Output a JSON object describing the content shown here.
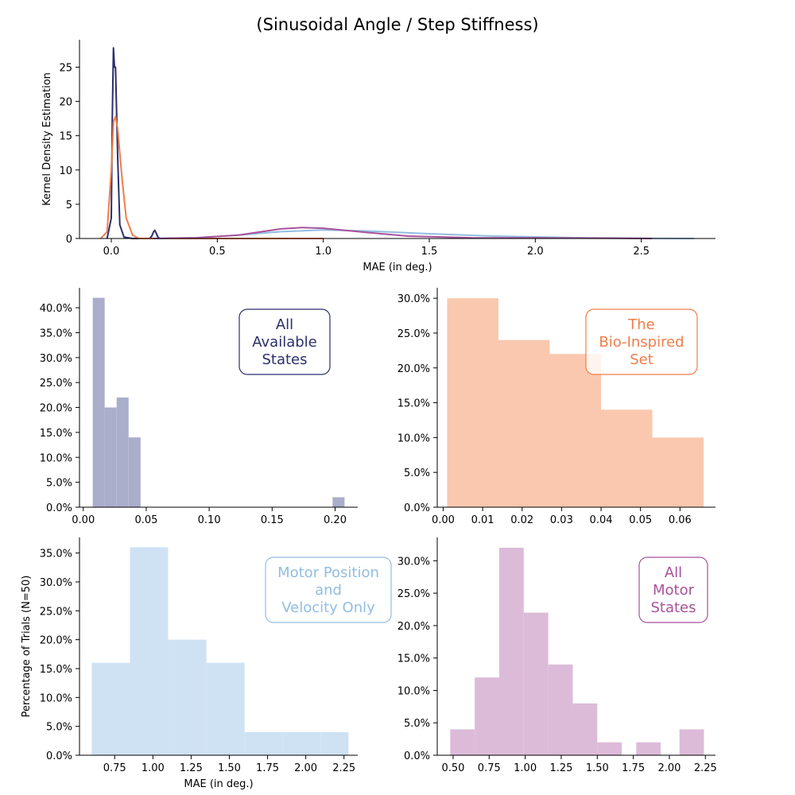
{
  "title": "(Sinusoidal Angle / Step Stiffness)",
  "ylabel_left": "Percentage of Trials (N=50)",
  "chart_data": [
    {
      "type": "line",
      "name": "kde",
      "xlabel": "MAE (in deg.)",
      "ylabel": "Kernel Density Estimation",
      "xlim": [
        -0.15,
        2.85
      ],
      "ylim": [
        0,
        29
      ],
      "xticks": [
        0.0,
        0.5,
        1.0,
        1.5,
        2.0,
        2.5
      ],
      "yticks": [
        0,
        5,
        10,
        15,
        20,
        25
      ],
      "series": [
        {
          "color": "#2b2f6b",
          "x": [
            -0.02,
            0.0,
            0.005,
            0.01,
            0.015,
            0.02,
            0.03,
            0.04,
            0.06,
            0.1,
            0.18,
            0.19,
            0.2,
            0.205,
            0.21,
            0.22,
            0.23,
            0.3,
            1.0
          ],
          "y": [
            0,
            3,
            18,
            27.8,
            25,
            25,
            12,
            2,
            0.2,
            0,
            0,
            0.3,
            1.0,
            1.2,
            0.9,
            0.2,
            0,
            0,
            0
          ]
        },
        {
          "color": "#f07d4a",
          "x": [
            -0.05,
            -0.02,
            0.0,
            0.01,
            0.02,
            0.03,
            0.05,
            0.07,
            0.1,
            0.13,
            0.2,
            1.0
          ],
          "y": [
            0,
            1,
            10,
            17,
            17.8,
            16,
            9,
            3,
            0.5,
            0,
            0,
            0
          ]
        },
        {
          "color": "#92bde1",
          "x": [
            0.2,
            0.4,
            0.6,
            0.8,
            1.0,
            1.2,
            1.5,
            1.8,
            2.2,
            2.5,
            2.75
          ],
          "y": [
            0,
            0.1,
            0.5,
            1.0,
            1.25,
            1.1,
            0.7,
            0.35,
            0.12,
            0.03,
            0
          ]
        },
        {
          "color": "#a8529b",
          "x": [
            0.2,
            0.4,
            0.6,
            0.8,
            0.9,
            1.0,
            1.2,
            1.4,
            1.7,
            2.0,
            2.3,
            2.55
          ],
          "y": [
            0,
            0.1,
            0.5,
            1.4,
            1.6,
            1.5,
            0.9,
            0.35,
            0.1,
            0.08,
            0.05,
            0
          ]
        }
      ]
    },
    {
      "type": "bar",
      "name": "all-available-states",
      "label": "All\nAvailable\nStates",
      "color": "#aaaecb",
      "boxcolor": "#2b2f6b",
      "xlim": [
        -0.003,
        0.218
      ],
      "ylim": [
        0,
        0.44
      ],
      "xticks": [
        0.0,
        0.05,
        0.1,
        0.15,
        0.2
      ],
      "xticklabels": [
        "0.00",
        "0.05",
        "0.10",
        "0.15",
        "0.20"
      ],
      "yticks": [
        0,
        0.05,
        0.1,
        0.15,
        0.2,
        0.25,
        0.3,
        0.35,
        0.4
      ],
      "bins": [
        {
          "x0": 0.0075,
          "x1": 0.017,
          "v": 0.42
        },
        {
          "x0": 0.017,
          "x1": 0.0265,
          "v": 0.2
        },
        {
          "x0": 0.0265,
          "x1": 0.036,
          "v": 0.22
        },
        {
          "x0": 0.036,
          "x1": 0.0455,
          "v": 0.14
        },
        {
          "x0": 0.198,
          "x1": 0.2075,
          "v": 0.02
        }
      ]
    },
    {
      "type": "bar",
      "name": "bio-inspired-set",
      "label": "The\nBio-Inspired\nSet",
      "color": "#f9c8ae",
      "boxcolor": "#f07d4a",
      "xlim": [
        -0.0015,
        0.069
      ],
      "ylim": [
        0,
        0.315
      ],
      "xticks": [
        0.0,
        0.01,
        0.02,
        0.03,
        0.04,
        0.05,
        0.06
      ],
      "xticklabels": [
        "0.00",
        "0.01",
        "0.02",
        "0.03",
        "0.04",
        "0.05",
        "0.06"
      ],
      "yticks": [
        0,
        0.05,
        0.1,
        0.15,
        0.2,
        0.25,
        0.3
      ],
      "bins": [
        {
          "x0": 0.001,
          "x1": 0.014,
          "v": 0.3
        },
        {
          "x0": 0.014,
          "x1": 0.027,
          "v": 0.24
        },
        {
          "x0": 0.027,
          "x1": 0.04,
          "v": 0.22
        },
        {
          "x0": 0.04,
          "x1": 0.053,
          "v": 0.14
        },
        {
          "x0": 0.053,
          "x1": 0.066,
          "v": 0.1
        }
      ]
    },
    {
      "type": "bar",
      "name": "motor-position-velocity",
      "label": "Motor Position\nand\nVelocity Only",
      "color": "#cfe2f4",
      "boxcolor": "#92bde1",
      "xlabel": "MAE (in deg.)",
      "xlim": [
        0.52,
        2.34
      ],
      "ylim": [
        0,
        0.377
      ],
      "xticks": [
        0.75,
        1.0,
        1.25,
        1.5,
        1.75,
        2.0,
        2.25
      ],
      "xticklabels": [
        "0.75",
        "1.00",
        "1.25",
        "1.50",
        "1.75",
        "2.00",
        "2.25"
      ],
      "yticks": [
        0,
        0.05,
        0.1,
        0.15,
        0.2,
        0.25,
        0.3,
        0.35
      ],
      "bins": [
        {
          "x0": 0.6,
          "x1": 0.85,
          "v": 0.16
        },
        {
          "x0": 0.85,
          "x1": 1.1,
          "v": 0.36
        },
        {
          "x0": 1.1,
          "x1": 1.35,
          "v": 0.2
        },
        {
          "x0": 1.35,
          "x1": 1.6,
          "v": 0.16
        },
        {
          "x0": 1.6,
          "x1": 1.85,
          "v": 0.04
        },
        {
          "x0": 1.85,
          "x1": 2.1,
          "v": 0.04
        },
        {
          "x0": 2.1,
          "x1": 2.28,
          "v": 0.04
        }
      ]
    },
    {
      "type": "bar",
      "name": "all-motor-states",
      "label": "All\nMotor\nStates",
      "color": "#dcbbd9",
      "boxcolor": "#a8529b",
      "xlim": [
        0.39,
        2.32
      ],
      "ylim": [
        0,
        0.336
      ],
      "xticks": [
        0.5,
        0.75,
        1.0,
        1.25,
        1.5,
        1.75,
        2.0,
        2.25
      ],
      "xticklabels": [
        "0.50",
        "0.75",
        "1.00",
        "1.25",
        "1.50",
        "1.75",
        "2.00",
        "2.25"
      ],
      "yticks": [
        0,
        0.05,
        0.1,
        0.15,
        0.2,
        0.25,
        0.3
      ],
      "bins": [
        {
          "x0": 0.48,
          "x1": 0.65,
          "v": 0.04
        },
        {
          "x0": 0.65,
          "x1": 0.82,
          "v": 0.12
        },
        {
          "x0": 0.82,
          "x1": 0.99,
          "v": 0.32
        },
        {
          "x0": 0.99,
          "x1": 1.16,
          "v": 0.22
        },
        {
          "x0": 1.16,
          "x1": 1.33,
          "v": 0.14
        },
        {
          "x0": 1.33,
          "x1": 1.5,
          "v": 0.08
        },
        {
          "x0": 1.5,
          "x1": 1.67,
          "v": 0.02
        },
        {
          "x0": 1.77,
          "x1": 1.94,
          "v": 0.02
        },
        {
          "x0": 2.07,
          "x1": 2.24,
          "v": 0.04
        }
      ]
    }
  ]
}
